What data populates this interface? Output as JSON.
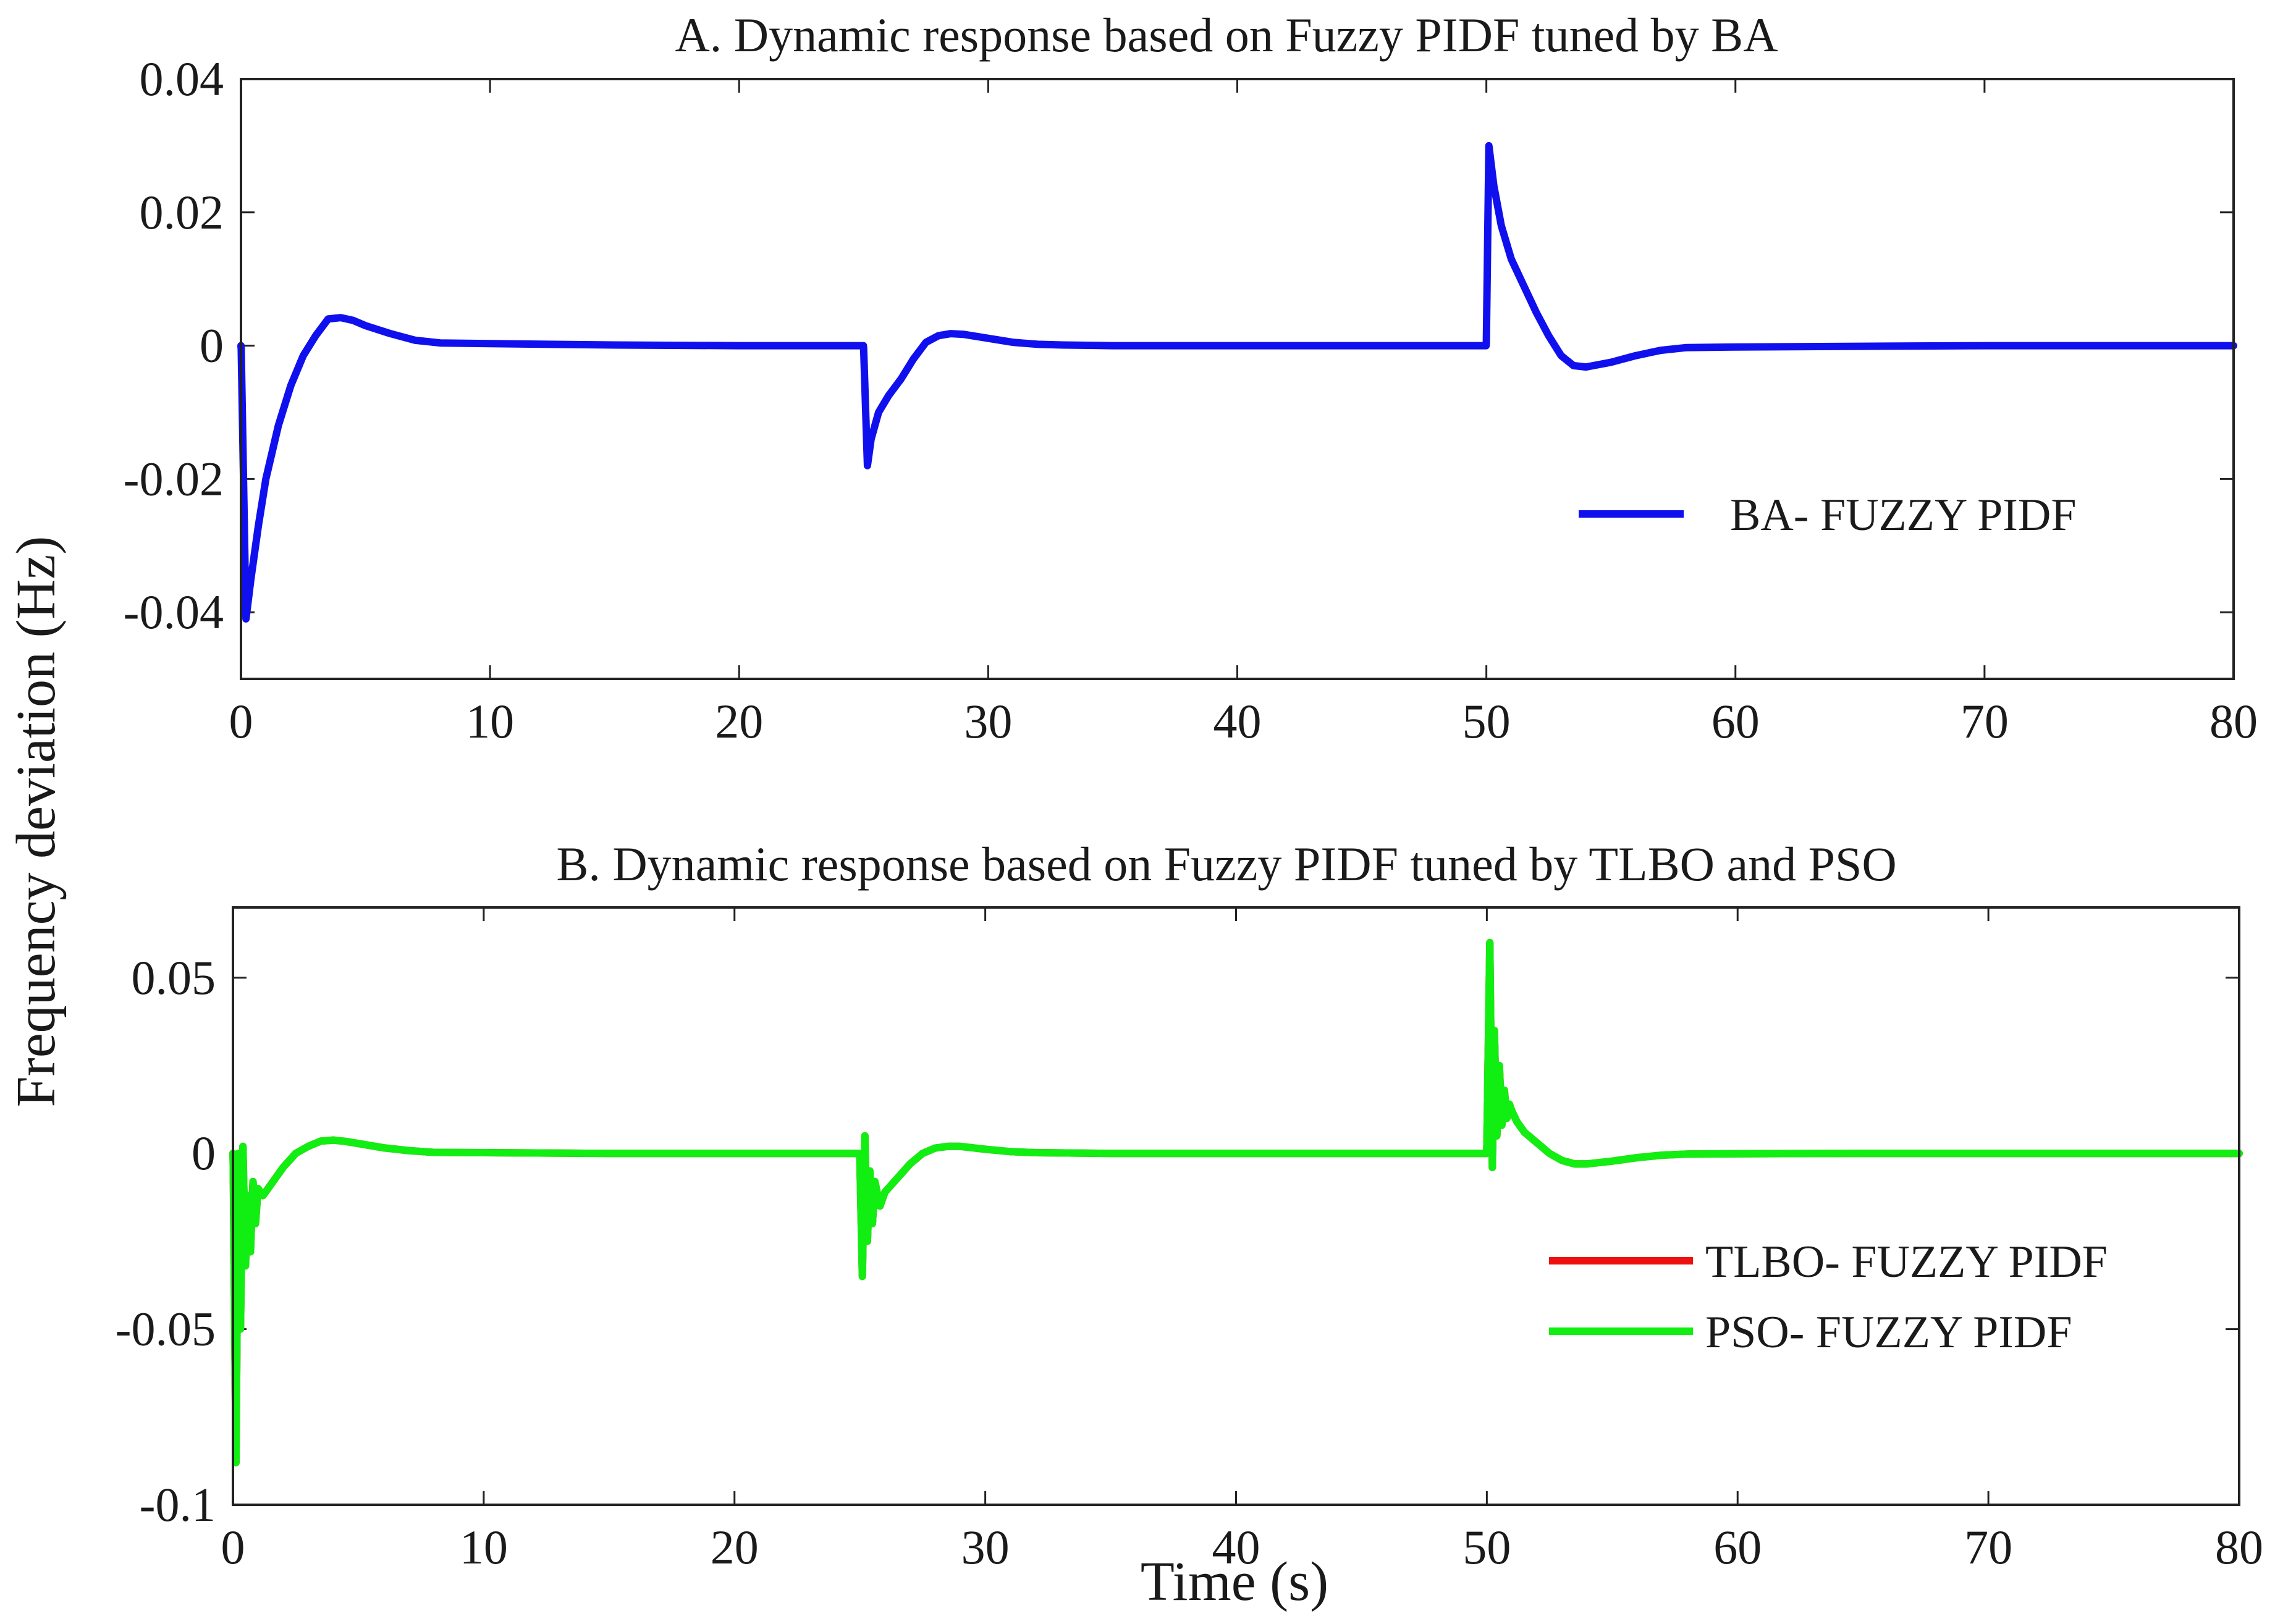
{
  "shared_ylabel": "Frequency deviation (Hz)",
  "chart_data": [
    {
      "type": "line",
      "title": "A. Dynamic response based on Fuzzy PIDF tuned by BA",
      "xlabel": "",
      "ylabel": "Frequency deviation (Hz)",
      "xlim": [
        0,
        80
      ],
      "ylim": [
        -0.05,
        0.04
      ],
      "xticks": [
        0,
        10,
        20,
        30,
        40,
        50,
        60,
        70,
        80
      ],
      "xtick_labels": [
        "0",
        "10",
        "20",
        "30",
        "40",
        "50",
        "60",
        "70",
        "80"
      ],
      "yticks": [
        -0.04,
        -0.02,
        0,
        0.02,
        0.04
      ],
      "ytick_labels": [
        "-0.04",
        "-0.02",
        "0",
        "0.02",
        "0.04"
      ],
      "legend_position": "right",
      "series": [
        {
          "name": "BA- FUZZY PIDF",
          "color": "#1010ee",
          "x": [
            0,
            0.01,
            0.2,
            0.4,
            0.7,
            1.0,
            1.5,
            2.0,
            2.5,
            3.0,
            3.5,
            4.0,
            4.5,
            5.0,
            6.0,
            7.0,
            8.0,
            10.0,
            15.0,
            20.0,
            24.99,
            25.0,
            25.15,
            25.3,
            25.6,
            26.0,
            26.5,
            27.0,
            27.5,
            28.0,
            28.5,
            29.0,
            30.0,
            31.0,
            32.0,
            33.0,
            35.0,
            40.0,
            49.99,
            50.0,
            50.1,
            50.3,
            50.6,
            51.0,
            51.5,
            52.0,
            52.5,
            53.0,
            53.5,
            54.0,
            55.0,
            56.0,
            57.0,
            58.0,
            60.0,
            65.0,
            70.0,
            75.0,
            80.0
          ],
          "y": [
            0,
            -0.0005,
            -0.041,
            -0.035,
            -0.027,
            -0.02,
            -0.012,
            -0.006,
            -0.0015,
            0.0015,
            0.004,
            0.0042,
            0.0038,
            0.003,
            0.0018,
            0.0008,
            0.0004,
            0.0003,
            0.0001,
            0.0,
            0.0,
            -0.0005,
            -0.018,
            -0.014,
            -0.01,
            -0.0075,
            -0.005,
            -0.002,
            0.0005,
            0.0015,
            0.0018,
            0.0017,
            0.0011,
            0.0005,
            0.0002,
            0.0001,
            0.0,
            0.0,
            0.0,
            0.0005,
            0.03,
            0.024,
            0.018,
            0.013,
            0.009,
            0.005,
            0.0015,
            -0.0015,
            -0.003,
            -0.0032,
            -0.0025,
            -0.0015,
            -0.0007,
            -0.0003,
            -0.0002,
            -0.0001,
            0.0,
            0.0,
            0.0
          ]
        }
      ]
    },
    {
      "type": "line",
      "title": "B. Dynamic response based on Fuzzy PIDF tuned by TLBO and PSO",
      "xlabel": "Time (s)",
      "ylabel": "Frequency deviation (Hz)",
      "xlim": [
        0,
        80
      ],
      "ylim": [
        -0.1,
        0.07
      ],
      "xticks": [
        0,
        10,
        20,
        30,
        40,
        50,
        60,
        70,
        80
      ],
      "xtick_labels": [
        "0",
        "10",
        "20",
        "30",
        "40",
        "50",
        "60",
        "70",
        "80"
      ],
      "yticks": [
        -0.1,
        -0.05,
        0,
        0.05
      ],
      "ytick_labels": [
        "-0.1",
        "-0.05",
        "0",
        "0.05"
      ],
      "legend_position": "right",
      "series": [
        {
          "name": "TLBO- FUZZY PIDF",
          "color": "#ee1010",
          "x": [
            0,
            0.01,
            0.12,
            0.22,
            0.3,
            0.4,
            0.5,
            0.6,
            0.7,
            0.8,
            0.9,
            1.0,
            1.2,
            1.5,
            2.0,
            2.5,
            3.0,
            3.5,
            4.0,
            4.5,
            5.0,
            6.0,
            7.0,
            8.0,
            10.0,
            15.0,
            20.0,
            24.99,
            25.0,
            25.1,
            25.2,
            25.3,
            25.4,
            25.5,
            25.6,
            25.8,
            26.0,
            26.5,
            27.0,
            27.5,
            28.0,
            28.5,
            29.0,
            30.0,
            31.0,
            32.0,
            35.0,
            40.0,
            49.99,
            50.0,
            50.12,
            50.22,
            50.3,
            50.4,
            50.5,
            50.6,
            50.7,
            50.8,
            50.9,
            51.0,
            51.2,
            51.5,
            52.0,
            52.5,
            53.0,
            53.5,
            54.0,
            55.0,
            56.0,
            57.0,
            58.0,
            60.0,
            65.0,
            70.0,
            75.0,
            80.0
          ],
          "y": [
            0,
            -0.002,
            -0.088,
            0.0,
            -0.05,
            0.002,
            -0.032,
            -0.012,
            -0.028,
            -0.008,
            -0.02,
            -0.01,
            -0.012,
            -0.009,
            -0.004,
            0.0,
            0.002,
            0.0035,
            0.0038,
            0.0034,
            0.0028,
            0.0016,
            0.0008,
            0.0003,
            0.0002,
            0.0,
            0.0,
            0.0,
            -0.002,
            -0.035,
            0.005,
            -0.025,
            -0.005,
            -0.02,
            -0.008,
            -0.015,
            -0.011,
            -0.007,
            -0.003,
            0.0,
            0.0015,
            0.002,
            0.002,
            0.0012,
            0.0005,
            0.0002,
            0.0,
            0.0,
            0.0,
            0.002,
            0.06,
            -0.004,
            0.035,
            0.005,
            0.025,
            0.008,
            0.018,
            0.01,
            0.014,
            0.012,
            0.009,
            0.006,
            0.003,
            0.0,
            -0.002,
            -0.003,
            -0.003,
            -0.0022,
            -0.0012,
            -0.0005,
            -0.0002,
            -0.0001,
            0.0,
            0.0,
            0.0,
            0.0
          ]
        },
        {
          "name": "PSO- FUZZY PIDF",
          "color": "#11ee11",
          "x": [
            0,
            0.01,
            0.12,
            0.22,
            0.3,
            0.4,
            0.5,
            0.6,
            0.7,
            0.8,
            0.9,
            1.0,
            1.2,
            1.5,
            2.0,
            2.5,
            3.0,
            3.5,
            4.0,
            4.5,
            5.0,
            6.0,
            7.0,
            8.0,
            10.0,
            15.0,
            20.0,
            24.99,
            25.0,
            25.1,
            25.2,
            25.3,
            25.4,
            25.5,
            25.6,
            25.8,
            26.0,
            26.5,
            27.0,
            27.5,
            28.0,
            28.5,
            29.0,
            30.0,
            31.0,
            32.0,
            35.0,
            40.0,
            49.99,
            50.0,
            50.12,
            50.22,
            50.3,
            50.4,
            50.5,
            50.6,
            50.7,
            50.8,
            50.9,
            51.0,
            51.2,
            51.5,
            52.0,
            52.5,
            53.0,
            53.5,
            54.0,
            55.0,
            56.0,
            57.0,
            58.0,
            60.0,
            65.0,
            70.0,
            75.0,
            80.0
          ],
          "y": [
            0,
            -0.002,
            -0.088,
            0.0,
            -0.05,
            0.002,
            -0.032,
            -0.012,
            -0.028,
            -0.008,
            -0.02,
            -0.01,
            -0.012,
            -0.009,
            -0.004,
            0.0,
            0.002,
            0.0035,
            0.0038,
            0.0034,
            0.0028,
            0.0016,
            0.0008,
            0.0003,
            0.0002,
            0.0,
            0.0,
            0.0,
            -0.002,
            -0.035,
            0.005,
            -0.025,
            -0.005,
            -0.02,
            -0.008,
            -0.015,
            -0.011,
            -0.007,
            -0.003,
            0.0,
            0.0015,
            0.002,
            0.002,
            0.0012,
            0.0005,
            0.0002,
            0.0,
            0.0,
            0.0,
            0.002,
            0.06,
            -0.004,
            0.035,
            0.005,
            0.025,
            0.008,
            0.018,
            0.01,
            0.014,
            0.012,
            0.009,
            0.006,
            0.003,
            0.0,
            -0.002,
            -0.003,
            -0.003,
            -0.0022,
            -0.0012,
            -0.0005,
            -0.0002,
            -0.0001,
            0.0,
            0.0,
            0.0,
            0.0
          ]
        }
      ]
    }
  ]
}
